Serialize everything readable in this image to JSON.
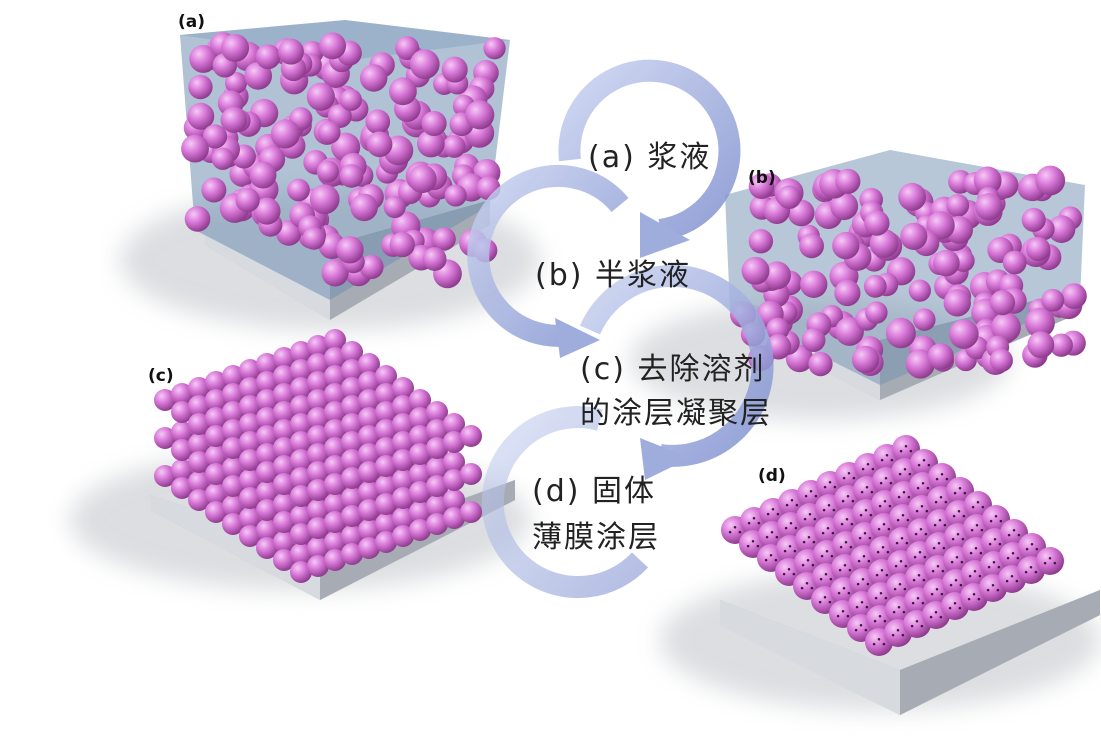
{
  "panels": {
    "a": {
      "label": "(a)"
    },
    "b": {
      "label": "(b)"
    },
    "c": {
      "label": "(c)"
    },
    "d": {
      "label": "(d)"
    }
  },
  "steps": [
    {
      "lines": [
        "(a) 浆液"
      ]
    },
    {
      "lines": [
        "(b) 半浆液"
      ]
    },
    {
      "lines": [
        "(c) 去除溶剂",
        "的涂层凝聚层"
      ]
    },
    {
      "lines": [
        "(d) 固体",
        "薄膜涂层"
      ]
    }
  ],
  "colors": {
    "particle": "#d97ad9",
    "particle_dark": "#9a3f9a",
    "binder": "#6f8fb0",
    "substrate": "#c8ccd2",
    "arrow": "#8f9fd6"
  }
}
